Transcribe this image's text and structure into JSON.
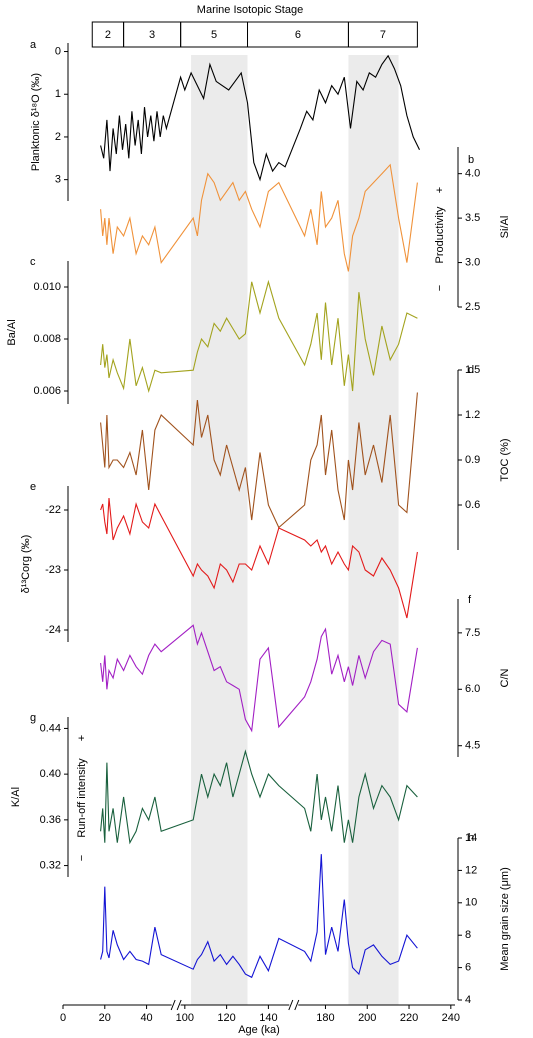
{
  "title": "Marine Isotopic Stage",
  "x_axis": {
    "label": "Age (ka)",
    "ticks": [
      0,
      20,
      40,
      100,
      120,
      140,
      180,
      200,
      220,
      240
    ],
    "segments": [
      [
        0,
        52
      ],
      [
        98,
        150
      ],
      [
        167,
        242
      ]
    ]
  },
  "shaded": [
    [
      103,
      130
    ],
    [
      191,
      215
    ]
  ],
  "stages": [
    {
      "label": "2",
      "start": 14,
      "end": 29
    },
    {
      "label": "3",
      "start": 29,
      "end": 57
    },
    {
      "label": "5",
      "start": 71,
      "end": 130
    },
    {
      "label": "6",
      "start": 130,
      "end": 191
    },
    {
      "label": "7",
      "start": 191,
      "end": 224
    }
  ],
  "chart_data": [
    {
      "type": "line",
      "letter": "a",
      "ylabel": "Planktonic δ¹⁸O (‰)",
      "side": "left",
      "invert": true,
      "color": "#000000",
      "ylim": [
        -0.2,
        3.5
      ],
      "yticks": [
        0,
        1,
        2,
        3
      ],
      "x": [
        18,
        19.5,
        21,
        22.5,
        24,
        25.5,
        27,
        28.5,
        30,
        31.5,
        33,
        34.5,
        36,
        37.5,
        39,
        40.5,
        42,
        43.5,
        45,
        46.5,
        48,
        49.5,
        97,
        100,
        103,
        106,
        109,
        112,
        115,
        118,
        121,
        124,
        127,
        130,
        133,
        136,
        139,
        142,
        145,
        148,
        168,
        171,
        174,
        177,
        180,
        183,
        186,
        189,
        192,
        195,
        198,
        201,
        204,
        207,
        210,
        213,
        216,
        219,
        222,
        225
      ],
      "values": [
        2.2,
        2.5,
        1.6,
        2.8,
        1.8,
        2.4,
        1.5,
        2.3,
        1.7,
        2.5,
        1.4,
        2.2,
        1.6,
        2.4,
        1.3,
        2.0,
        1.5,
        2.1,
        1.4,
        2.0,
        1.5,
        1.8,
        0.6,
        0.9,
        0.5,
        0.8,
        1.1,
        0.3,
        0.7,
        0.8,
        0.9,
        0.7,
        0.5,
        1.2,
        2.6,
        3.0,
        2.4,
        2.8,
        2.6,
        2.7,
        1.8,
        1.4,
        1.6,
        0.9,
        1.2,
        0.8,
        1.0,
        0.6,
        1.8,
        0.7,
        0.9,
        0.5,
        0.6,
        0.3,
        0.1,
        0.4,
        0.8,
        1.5,
        2.0,
        2.3
      ]
    },
    {
      "type": "line",
      "letter": "b",
      "ylabel": "Si/Al",
      "side": "right",
      "color": "#f0923a",
      "ylim": [
        2.5,
        4.3
      ],
      "yticks": [
        {
          "value": 2.5,
          "label": "2.5"
        },
        {
          "value": 3,
          "label": "3.0"
        },
        3.5,
        {
          "value": 4,
          "label": "4.0"
        }
      ],
      "note": "Productivity",
      "note_plus": "+",
      "note_minus": "−",
      "x": [
        18,
        19,
        20,
        21,
        22,
        24,
        26,
        29,
        32,
        35,
        38,
        41,
        44,
        47,
        104,
        106,
        108,
        111,
        114,
        117,
        120,
        123,
        126,
        129,
        132,
        136,
        140,
        145,
        170,
        173,
        176,
        178,
        180,
        183,
        186,
        189,
        191,
        193,
        196,
        199,
        203,
        207,
        211,
        215,
        219,
        224
      ],
      "values": [
        3.6,
        3.3,
        3.5,
        3.2,
        3.5,
        3.1,
        3.4,
        3.3,
        3.5,
        3.1,
        3.3,
        3.2,
        3.4,
        3.0,
        3.5,
        3.3,
        3.7,
        4.0,
        3.9,
        3.7,
        3.8,
        3.9,
        3.7,
        3.8,
        3.6,
        3.4,
        3.8,
        3.9,
        3.3,
        3.6,
        3.2,
        3.8,
        3.4,
        3.5,
        3.7,
        3.1,
        2.9,
        3.3,
        3.5,
        3.8,
        3.9,
        4.0,
        4.1,
        3.5,
        3.0,
        3.9
      ]
    },
    {
      "type": "line",
      "letter": "c",
      "ylabel": "Ba/Al",
      "side": "left",
      "color": "#a3a31e",
      "ylim": [
        0.0055,
        0.011
      ],
      "yticks": [
        0.006,
        0.008,
        {
          "value": 0.01,
          "label": "0.010"
        }
      ],
      "x": [
        18,
        19,
        20,
        21,
        22,
        24,
        26,
        29,
        32,
        35,
        38,
        41,
        44,
        47,
        104,
        106,
        108,
        111,
        114,
        117,
        120,
        123,
        126,
        129,
        132,
        136,
        140,
        145,
        170,
        173,
        176,
        178,
        180,
        183,
        186,
        189,
        191,
        193,
        196,
        199,
        203,
        207,
        211,
        215,
        219,
        224
      ],
      "values": [
        0.007,
        0.0078,
        0.0069,
        0.0074,
        0.0065,
        0.0072,
        0.0067,
        0.0061,
        0.008,
        0.0062,
        0.0069,
        0.006,
        0.0068,
        0.0067,
        0.0068,
        0.0075,
        0.008,
        0.0077,
        0.0086,
        0.0083,
        0.0088,
        0.0084,
        0.008,
        0.0082,
        0.0102,
        0.009,
        0.0102,
        0.0088,
        0.007,
        0.0078,
        0.009,
        0.0072,
        0.0094,
        0.007,
        0.0088,
        0.0062,
        0.0074,
        0.006,
        0.0098,
        0.008,
        0.0066,
        0.0085,
        0.0072,
        0.0078,
        0.009,
        0.0088
      ]
    },
    {
      "type": "line",
      "letter": "d",
      "ylabel": "TOC (%)",
      "side": "right",
      "color": "#a0521d",
      "ylim": [
        0.3,
        1.5
      ],
      "yticks": [
        0.6,
        0.9,
        1.2,
        1.5
      ],
      "x": [
        18,
        19,
        20,
        21,
        22,
        24,
        26,
        29,
        32,
        35,
        38,
        41,
        44,
        47,
        104,
        106,
        108,
        111,
        114,
        117,
        120,
        123,
        126,
        129,
        132,
        136,
        140,
        145,
        170,
        173,
        176,
        178,
        180,
        183,
        186,
        189,
        191,
        193,
        196,
        199,
        203,
        207,
        211,
        215,
        219,
        224
      ],
      "values": [
        1.15,
        1.0,
        0.85,
        1.2,
        0.85,
        0.9,
        0.9,
        0.85,
        0.95,
        0.8,
        1.1,
        0.7,
        1.1,
        1.2,
        1.0,
        1.3,
        1.05,
        1.2,
        0.9,
        0.8,
        1.0,
        0.85,
        0.7,
        0.85,
        0.5,
        0.95,
        0.6,
        0.45,
        0.6,
        0.9,
        1.0,
        1.2,
        0.8,
        1.1,
        0.7,
        0.5,
        0.9,
        0.7,
        1.15,
        0.8,
        1.0,
        0.75,
        1.2,
        0.6,
        0.55,
        1.35
      ]
    },
    {
      "type": "line",
      "letter": "e",
      "ylabel": "δ¹³Corg (‰)",
      "side": "left",
      "color": "#e31a1a",
      "ylim": [
        -24.2,
        -21.6
      ],
      "yticks": [
        -24,
        -23,
        -22
      ],
      "x": [
        18,
        19,
        20,
        21,
        22,
        24,
        26,
        29,
        32,
        35,
        38,
        41,
        44,
        47,
        104,
        106,
        108,
        111,
        114,
        117,
        120,
        123,
        126,
        129,
        132,
        136,
        140,
        145,
        170,
        173,
        176,
        178,
        180,
        183,
        186,
        189,
        191,
        193,
        196,
        199,
        203,
        207,
        211,
        215,
        219,
        224
      ],
      "values": [
        -22.0,
        -21.9,
        -22.2,
        -22.4,
        -21.8,
        -22.5,
        -22.3,
        -22.1,
        -22.4,
        -21.9,
        -22.2,
        -22.3,
        -21.9,
        -22.1,
        -23.1,
        -22.9,
        -23.0,
        -23.1,
        -23.3,
        -22.9,
        -23.0,
        -23.2,
        -22.9,
        -22.9,
        -23.0,
        -22.6,
        -22.9,
        -22.3,
        -22.5,
        -22.6,
        -22.5,
        -22.7,
        -22.6,
        -22.9,
        -22.7,
        -22.9,
        -23.0,
        -22.6,
        -22.7,
        -23.0,
        -23.1,
        -22.8,
        -23.0,
        -23.3,
        -23.8,
        -22.7
      ]
    },
    {
      "type": "line",
      "letter": "f",
      "ylabel": "C/N",
      "side": "right",
      "color": "#a21fc4",
      "ylim": [
        4.2,
        8.4
      ],
      "yticks": [
        4.5,
        {
          "value": 6,
          "label": "6.0"
        },
        7.5
      ],
      "x": [
        18,
        19,
        20,
        21,
        22,
        24,
        26,
        29,
        32,
        35,
        38,
        41,
        44,
        47,
        104,
        106,
        108,
        111,
        114,
        117,
        120,
        123,
        126,
        129,
        132,
        136,
        140,
        145,
        170,
        173,
        176,
        178,
        180,
        183,
        186,
        189,
        191,
        193,
        196,
        199,
        203,
        207,
        211,
        215,
        219,
        224
      ],
      "values": [
        6.7,
        6.2,
        6.9,
        6.0,
        6.5,
        6.3,
        6.8,
        6.5,
        6.9,
        6.6,
        6.4,
        6.9,
        7.2,
        7.0,
        7.7,
        7.2,
        7.5,
        7.0,
        6.5,
        6.6,
        6.2,
        6.1,
        6.0,
        5.2,
        4.9,
        6.8,
        7.1,
        5.0,
        5.8,
        6.2,
        6.8,
        7.4,
        7.6,
        6.4,
        6.9,
        6.2,
        6.6,
        6.1,
        6.9,
        6.3,
        7.0,
        7.3,
        7.2,
        5.6,
        5.4,
        7.1
      ]
    },
    {
      "type": "line",
      "letter": "g",
      "ylabel": "K/Al",
      "side": "left",
      "color": "#19603d",
      "ylim": [
        0.31,
        0.45
      ],
      "yticks": [
        0.32,
        0.36,
        {
          "value": 0.4,
          "label": "0.40"
        },
        0.44
      ],
      "note": "Run-off intensity",
      "note_plus": "+",
      "note_minus": "−",
      "x": [
        18,
        19,
        20,
        21,
        22,
        24,
        26,
        29,
        32,
        35,
        38,
        41,
        44,
        47,
        104,
        106,
        108,
        111,
        114,
        117,
        120,
        123,
        126,
        129,
        132,
        136,
        140,
        145,
        170,
        173,
        176,
        178,
        180,
        183,
        186,
        189,
        191,
        193,
        196,
        199,
        203,
        207,
        211,
        215,
        219,
        224
      ],
      "values": [
        0.35,
        0.37,
        0.34,
        0.41,
        0.35,
        0.37,
        0.34,
        0.38,
        0.34,
        0.35,
        0.37,
        0.36,
        0.38,
        0.35,
        0.36,
        0.38,
        0.4,
        0.38,
        0.4,
        0.39,
        0.41,
        0.38,
        0.4,
        0.42,
        0.4,
        0.38,
        0.4,
        0.39,
        0.37,
        0.35,
        0.4,
        0.36,
        0.38,
        0.35,
        0.39,
        0.34,
        0.36,
        0.34,
        0.38,
        0.4,
        0.37,
        0.39,
        0.38,
        0.36,
        0.39,
        0.38
      ]
    },
    {
      "type": "line",
      "letter": "h",
      "ylabel": "Mean grain size (μm)",
      "side": "right",
      "color": "#1414d4",
      "ylim": [
        4,
        14
      ],
      "yticks": [
        4,
        6,
        8,
        10,
        12,
        14
      ],
      "x": [
        18,
        19,
        20,
        21,
        22,
        24,
        26,
        29,
        32,
        35,
        38,
        41,
        44,
        47,
        104,
        106,
        108,
        111,
        114,
        117,
        120,
        123,
        126,
        129,
        132,
        136,
        140,
        145,
        170,
        173,
        176,
        178,
        180,
        183,
        186,
        189,
        191,
        193,
        196,
        199,
        203,
        207,
        211,
        215,
        219,
        224
      ],
      "values": [
        6.5,
        7.0,
        11.0,
        7.0,
        6.6,
        8.3,
        7.4,
        6.5,
        7.0,
        6.5,
        6.4,
        6.2,
        8.5,
        6.8,
        5.9,
        6.5,
        6.8,
        7.6,
        6.4,
        6.8,
        6.2,
        6.7,
        6.2,
        5.6,
        5.4,
        6.7,
        5.8,
        7.8,
        7.0,
        6.4,
        8.2,
        13.0,
        6.8,
        8.5,
        7.0,
        10.2,
        7.5,
        6.0,
        5.6,
        7.1,
        7.4,
        6.7,
        6.2,
        6.4,
        8.0,
        7.2
      ]
    }
  ]
}
